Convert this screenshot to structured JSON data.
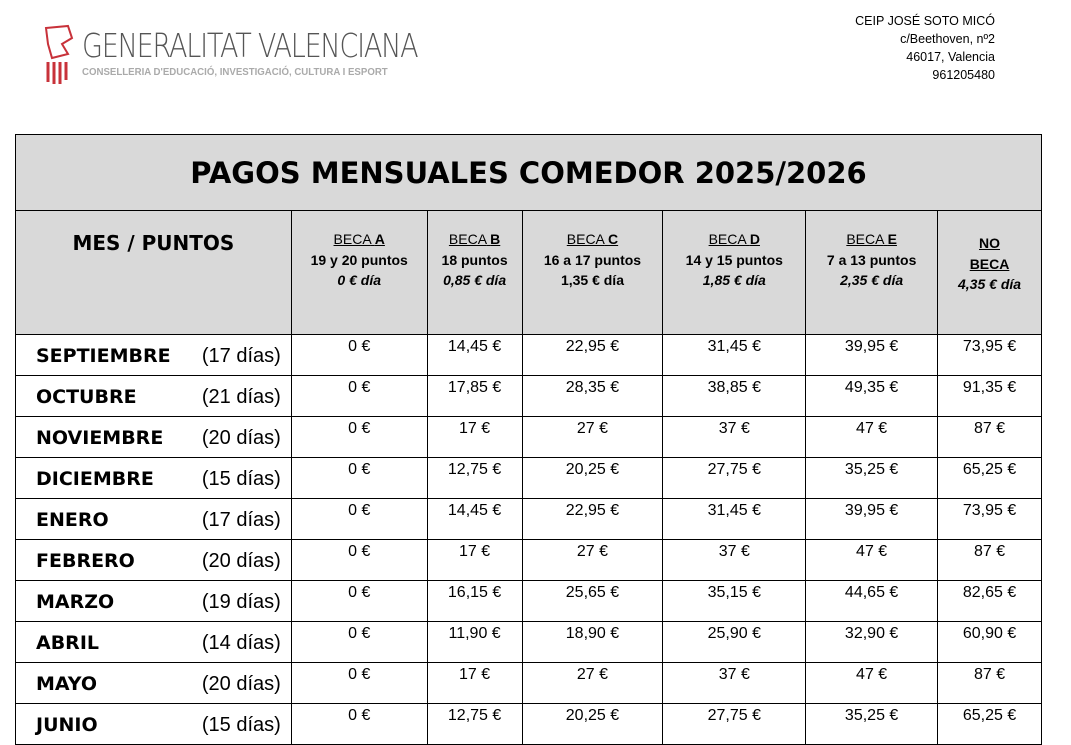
{
  "header": {
    "logo_name": "GENERALITAT VALENCIANA",
    "logo_sub": "CONSELLERIA D'EDUCACIÓ, INVESTIGACIÓ, CULTURA I ESPORT",
    "address": [
      "CEIP JOSÉ SOTO MICÓ",
      "c/Beethoven, nº2",
      "46017, Valencia",
      "961205480"
    ]
  },
  "table": {
    "title": "PAGOS MENSUALES COMEDOR 2025/2026",
    "first_header": "MES / PUNTOS",
    "columns": [
      {
        "beca": "BECA",
        "letter": "A",
        "points": "19 y 20 puntos",
        "rate": "0 € día",
        "italic": true
      },
      {
        "beca": "BECA",
        "letter": "B",
        "points": "18 puntos",
        "rate": "0,85 € día",
        "italic": true
      },
      {
        "beca": "BECA",
        "letter": "C",
        "points": "16 a 17 puntos",
        "rate": "1,35 € día",
        "italic": false
      },
      {
        "beca": "BECA",
        "letter": "D",
        "points": "14 y 15 puntos",
        "rate": "1,85 € día",
        "italic": true
      },
      {
        "beca": "BECA",
        "letter": "E",
        "points": "7 a 13 puntos",
        "rate": "2,35 € día",
        "italic": true
      }
    ],
    "no_beca": {
      "line1": "NO",
      "line2": "BECA",
      "rate": "4,35 € día"
    },
    "rows": [
      {
        "month": "SEPTIEMBRE",
        "days": "(17 días)",
        "values": [
          "0 €",
          "14,45 €",
          "22,95 €",
          "31,45 €",
          "39,95 €",
          "73,95 €"
        ]
      },
      {
        "month": "OCTUBRE",
        "days": "(21 días)",
        "values": [
          "0 €",
          "17,85 €",
          "28,35 €",
          "38,85 €",
          "49,35 €",
          "91,35 €"
        ]
      },
      {
        "month": "NOVIEMBRE",
        "days": "(20 días)",
        "values": [
          "0 €",
          "17 €",
          "27 €",
          "37 €",
          "47 €",
          "87 €"
        ]
      },
      {
        "month": "DICIEMBRE",
        "days": "(15 días)",
        "values": [
          "0 €",
          "12,75 €",
          "20,25 €",
          "27,75 €",
          "35,25 €",
          "65,25 €"
        ]
      },
      {
        "month": "ENERO",
        "days": "(17 días)",
        "values": [
          "0 €",
          "14,45 €",
          "22,95 €",
          "31,45 €",
          "39,95 €",
          "73,95 €"
        ]
      },
      {
        "month": "FEBRERO",
        "days": "(20 días)",
        "values": [
          "0 €",
          "17 €",
          "27 €",
          "37 €",
          "47 €",
          "87 €"
        ]
      },
      {
        "month": "MARZO",
        "days": "(19 días)",
        "values": [
          "0 €",
          "16,15 €",
          "25,65 €",
          "35,15 €",
          "44,65 €",
          "82,65 €"
        ]
      },
      {
        "month": "ABRIL",
        "days": "(14 días)",
        "values": [
          "0 €",
          "11,90 €",
          "18,90 €",
          "25,90 €",
          "32,90 €",
          "60,90 €"
        ]
      },
      {
        "month": "MAYO",
        "days": "(20 días)",
        "values": [
          "0 €",
          "17 €",
          "27 €",
          "37 €",
          "47 €",
          "87 €"
        ]
      },
      {
        "month": "JUNIO",
        "days": "(15 días)",
        "values": [
          "0 €",
          "12,75 €",
          "20,25 €",
          "27,75 €",
          "35,25 €",
          "65,25 €"
        ]
      }
    ]
  }
}
